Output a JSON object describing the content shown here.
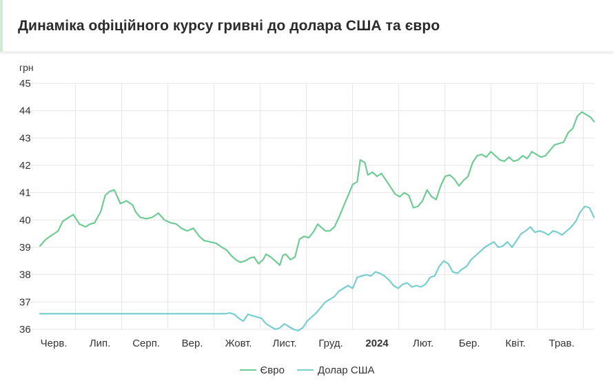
{
  "header": {
    "title": "Динаміка офіційного курсу гривні до долара США та євро"
  },
  "colors": {
    "euro": "#6ecb94",
    "usd": "#78cdcf",
    "grid": "#e5e5e5",
    "text": "#333333"
  },
  "legend": {
    "euro_label": "Євро",
    "usd_label": "Долар США"
  },
  "chart_data": {
    "type": "line",
    "ylabel": "грн",
    "ylim": [
      36,
      45
    ],
    "yticks": [
      36,
      37,
      38,
      39,
      40,
      41,
      42,
      43,
      44,
      45
    ],
    "grid": true,
    "legend_position": "bottom-center",
    "xlabels": [
      "Черв.",
      "Лип.",
      "Серп.",
      "Вер.",
      "Жовт.",
      "Лист.",
      "Груд.",
      "2024",
      "Лют.",
      "Бер.",
      "Квіт.",
      "Трав."
    ],
    "xlabels_bold": [
      "2024"
    ],
    "x_range": [
      "2023-06-01",
      "2024-05-31"
    ],
    "series": [
      {
        "name": "Євро",
        "color": "#6ecb94",
        "points": [
          [
            "2023-06-01",
            39.05
          ],
          [
            "2023-06-05",
            39.3
          ],
          [
            "2023-06-09",
            39.45
          ],
          [
            "2023-06-13",
            39.6
          ],
          [
            "2023-06-16",
            39.95
          ],
          [
            "2023-06-20",
            40.1
          ],
          [
            "2023-06-23",
            40.2
          ],
          [
            "2023-06-27",
            39.85
          ],
          [
            "2023-07-01",
            39.75
          ],
          [
            "2023-07-04",
            39.85
          ],
          [
            "2023-07-07",
            39.9
          ],
          [
            "2023-07-11",
            40.3
          ],
          [
            "2023-07-14",
            40.9
          ],
          [
            "2023-07-17",
            41.05
          ],
          [
            "2023-07-20",
            41.1
          ],
          [
            "2023-07-24",
            40.6
          ],
          [
            "2023-07-28",
            40.7
          ],
          [
            "2023-08-01",
            40.55
          ],
          [
            "2023-08-03",
            40.3
          ],
          [
            "2023-08-06",
            40.1
          ],
          [
            "2023-08-10",
            40.05
          ],
          [
            "2023-08-14",
            40.1
          ],
          [
            "2023-08-18",
            40.25
          ],
          [
            "2023-08-22",
            40.0
          ],
          [
            "2023-08-26",
            39.9
          ],
          [
            "2023-08-30",
            39.85
          ],
          [
            "2023-09-02",
            39.7
          ],
          [
            "2023-09-06",
            39.6
          ],
          [
            "2023-09-10",
            39.7
          ],
          [
            "2023-09-14",
            39.4
          ],
          [
            "2023-09-17",
            39.25
          ],
          [
            "2023-09-21",
            39.2
          ],
          [
            "2023-09-25",
            39.15
          ],
          [
            "2023-09-29",
            39.0
          ],
          [
            "2023-10-02",
            38.9
          ],
          [
            "2023-10-05",
            38.7
          ],
          [
            "2023-10-08",
            38.55
          ],
          [
            "2023-10-11",
            38.45
          ],
          [
            "2023-10-14",
            38.5
          ],
          [
            "2023-10-17",
            38.6
          ],
          [
            "2023-10-20",
            38.65
          ],
          [
            "2023-10-23",
            38.4
          ],
          [
            "2023-10-26",
            38.55
          ],
          [
            "2023-10-28",
            38.75
          ],
          [
            "2023-10-31",
            38.65
          ],
          [
            "2023-11-03",
            38.5
          ],
          [
            "2023-11-06",
            38.35
          ],
          [
            "2023-11-08",
            38.7
          ],
          [
            "2023-11-10",
            38.75
          ],
          [
            "2023-11-13",
            38.55
          ],
          [
            "2023-11-16",
            38.65
          ],
          [
            "2023-11-19",
            39.3
          ],
          [
            "2023-11-22",
            39.4
          ],
          [
            "2023-11-25",
            39.35
          ],
          [
            "2023-11-28",
            39.55
          ],
          [
            "2023-12-01",
            39.85
          ],
          [
            "2023-12-03",
            39.75
          ],
          [
            "2023-12-06",
            39.6
          ],
          [
            "2023-12-09",
            39.6
          ],
          [
            "2023-12-12",
            39.75
          ],
          [
            "2023-12-15",
            40.1
          ],
          [
            "2023-12-18",
            40.5
          ],
          [
            "2023-12-21",
            40.9
          ],
          [
            "2023-12-24",
            41.3
          ],
          [
            "2023-12-27",
            41.4
          ],
          [
            "2023-12-29",
            42.2
          ],
          [
            "2024-01-01",
            42.1
          ],
          [
            "2024-01-03",
            41.65
          ],
          [
            "2024-01-06",
            41.75
          ],
          [
            "2024-01-09",
            41.6
          ],
          [
            "2024-01-12",
            41.7
          ],
          [
            "2024-01-15",
            41.45
          ],
          [
            "2024-01-18",
            41.2
          ],
          [
            "2024-01-21",
            40.95
          ],
          [
            "2024-01-24",
            40.85
          ],
          [
            "2024-01-27",
            41.0
          ],
          [
            "2024-01-30",
            40.9
          ],
          [
            "2024-02-02",
            40.45
          ],
          [
            "2024-02-05",
            40.5
          ],
          [
            "2024-02-08",
            40.7
          ],
          [
            "2024-02-11",
            41.1
          ],
          [
            "2024-02-14",
            40.85
          ],
          [
            "2024-02-17",
            40.75
          ],
          [
            "2024-02-20",
            41.25
          ],
          [
            "2024-02-23",
            41.6
          ],
          [
            "2024-02-26",
            41.65
          ],
          [
            "2024-02-29",
            41.5
          ],
          [
            "2024-03-03",
            41.25
          ],
          [
            "2024-03-06",
            41.45
          ],
          [
            "2024-03-09",
            41.6
          ],
          [
            "2024-03-12",
            42.1
          ],
          [
            "2024-03-15",
            42.35
          ],
          [
            "2024-03-18",
            42.4
          ],
          [
            "2024-03-21",
            42.3
          ],
          [
            "2024-03-24",
            42.5
          ],
          [
            "2024-03-27",
            42.35
          ],
          [
            "2024-03-30",
            42.2
          ],
          [
            "2024-04-02",
            42.15
          ],
          [
            "2024-04-05",
            42.3
          ],
          [
            "2024-04-08",
            42.15
          ],
          [
            "2024-04-11",
            42.2
          ],
          [
            "2024-04-14",
            42.35
          ],
          [
            "2024-04-17",
            42.25
          ],
          [
            "2024-04-20",
            42.5
          ],
          [
            "2024-04-23",
            42.4
          ],
          [
            "2024-04-26",
            42.3
          ],
          [
            "2024-04-29",
            42.35
          ],
          [
            "2024-05-02",
            42.55
          ],
          [
            "2024-05-05",
            42.75
          ],
          [
            "2024-05-08",
            42.8
          ],
          [
            "2024-05-11",
            42.85
          ],
          [
            "2024-05-14",
            43.2
          ],
          [
            "2024-05-17",
            43.35
          ],
          [
            "2024-05-20",
            43.8
          ],
          [
            "2024-05-23",
            43.95
          ],
          [
            "2024-05-26",
            43.85
          ],
          [
            "2024-05-29",
            43.75
          ],
          [
            "2024-05-31",
            43.6
          ]
        ]
      },
      {
        "name": "Долар США",
        "color": "#78cdcf",
        "points": [
          [
            "2023-06-01",
            36.57
          ],
          [
            "2023-10-01",
            36.57
          ],
          [
            "2023-10-04",
            36.6
          ],
          [
            "2023-10-07",
            36.55
          ],
          [
            "2023-10-10",
            36.4
          ],
          [
            "2023-10-13",
            36.3
          ],
          [
            "2023-10-16",
            36.55
          ],
          [
            "2023-10-19",
            36.5
          ],
          [
            "2023-10-22",
            36.45
          ],
          [
            "2023-10-25",
            36.4
          ],
          [
            "2023-10-28",
            36.2
          ],
          [
            "2023-10-31",
            36.1
          ],
          [
            "2023-11-03",
            36.0
          ],
          [
            "2023-11-06",
            36.05
          ],
          [
            "2023-11-09",
            36.2
          ],
          [
            "2023-11-12",
            36.1
          ],
          [
            "2023-11-15",
            36.0
          ],
          [
            "2023-11-18",
            35.95
          ],
          [
            "2023-11-21",
            36.05
          ],
          [
            "2023-11-24",
            36.3
          ],
          [
            "2023-11-27",
            36.45
          ],
          [
            "2023-11-30",
            36.6
          ],
          [
            "2023-12-03",
            36.8
          ],
          [
            "2023-12-06",
            37.0
          ],
          [
            "2023-12-09",
            37.1
          ],
          [
            "2023-12-12",
            37.2
          ],
          [
            "2023-12-15",
            37.4
          ],
          [
            "2023-12-18",
            37.5
          ],
          [
            "2023-12-21",
            37.6
          ],
          [
            "2023-12-24",
            37.5
          ],
          [
            "2023-12-27",
            37.9
          ],
          [
            "2023-12-30",
            37.95
          ],
          [
            "2024-01-02",
            38.0
          ],
          [
            "2024-01-05",
            37.95
          ],
          [
            "2024-01-08",
            38.1
          ],
          [
            "2024-01-11",
            38.05
          ],
          [
            "2024-01-14",
            37.95
          ],
          [
            "2024-01-17",
            37.8
          ],
          [
            "2024-01-20",
            37.6
          ],
          [
            "2024-01-23",
            37.5
          ],
          [
            "2024-01-26",
            37.65
          ],
          [
            "2024-01-29",
            37.7
          ],
          [
            "2024-02-01",
            37.55
          ],
          [
            "2024-02-04",
            37.6
          ],
          [
            "2024-02-07",
            37.55
          ],
          [
            "2024-02-10",
            37.65
          ],
          [
            "2024-02-13",
            37.9
          ],
          [
            "2024-02-16",
            37.95
          ],
          [
            "2024-02-19",
            38.3
          ],
          [
            "2024-02-22",
            38.5
          ],
          [
            "2024-02-25",
            38.4
          ],
          [
            "2024-02-28",
            38.1
          ],
          [
            "2024-03-02",
            38.05
          ],
          [
            "2024-03-05",
            38.2
          ],
          [
            "2024-03-08",
            38.3
          ],
          [
            "2024-03-11",
            38.55
          ],
          [
            "2024-03-14",
            38.7
          ],
          [
            "2024-03-17",
            38.85
          ],
          [
            "2024-03-20",
            39.0
          ],
          [
            "2024-03-23",
            39.1
          ],
          [
            "2024-03-26",
            39.2
          ],
          [
            "2024-03-29",
            39.0
          ],
          [
            "2024-04-01",
            39.05
          ],
          [
            "2024-04-04",
            39.2
          ],
          [
            "2024-04-07",
            39.0
          ],
          [
            "2024-04-10",
            39.25
          ],
          [
            "2024-04-13",
            39.5
          ],
          [
            "2024-04-16",
            39.6
          ],
          [
            "2024-04-19",
            39.75
          ],
          [
            "2024-04-22",
            39.55
          ],
          [
            "2024-04-25",
            39.6
          ],
          [
            "2024-04-28",
            39.55
          ],
          [
            "2024-05-01",
            39.45
          ],
          [
            "2024-05-04",
            39.6
          ],
          [
            "2024-05-07",
            39.55
          ],
          [
            "2024-05-10",
            39.45
          ],
          [
            "2024-05-13",
            39.6
          ],
          [
            "2024-05-16",
            39.75
          ],
          [
            "2024-05-19",
            39.95
          ],
          [
            "2024-05-22",
            40.3
          ],
          [
            "2024-05-25",
            40.5
          ],
          [
            "2024-05-28",
            40.45
          ],
          [
            "2024-05-31",
            40.1
          ]
        ]
      }
    ]
  }
}
